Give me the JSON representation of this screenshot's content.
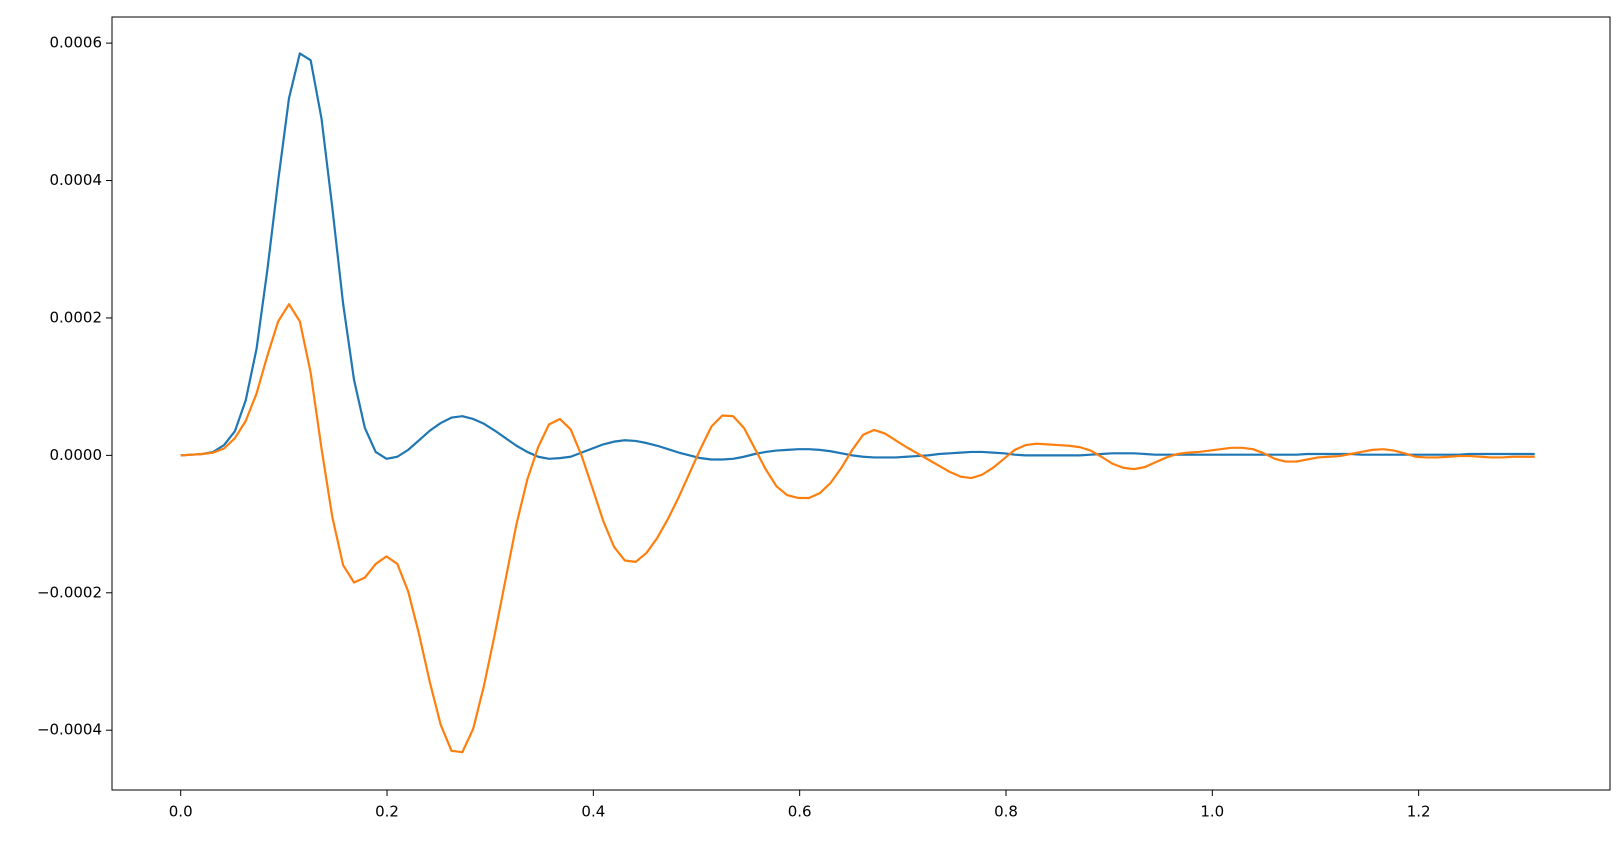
{
  "chart_data": {
    "type": "line",
    "x": [
      0,
      0.0105,
      0.021,
      0.0315,
      0.042,
      0.0525,
      0.063,
      0.0735,
      0.084,
      0.0945,
      0.105,
      0.1155,
      0.126,
      0.1365,
      0.147,
      0.1575,
      0.168,
      0.1785,
      0.189,
      0.1995,
      0.21,
      0.2205,
      0.231,
      0.2415,
      0.252,
      0.2625,
      0.273,
      0.2835,
      0.294,
      0.3045,
      0.315,
      0.3255,
      0.336,
      0.3465,
      0.357,
      0.3675,
      0.378,
      0.3885,
      0.399,
      0.4095,
      0.42,
      0.4305,
      0.441,
      0.4515,
      0.462,
      0.4725,
      0.483,
      0.4935,
      0.504,
      0.5145,
      0.525,
      0.5355,
      0.546,
      0.5565,
      0.567,
      0.5775,
      0.588,
      0.5985,
      0.609,
      0.6195,
      0.63,
      0.6405,
      0.651,
      0.6615,
      0.672,
      0.6825,
      0.693,
      0.7035,
      0.714,
      0.7245,
      0.735,
      0.7455,
      0.756,
      0.7665,
      0.777,
      0.7875,
      0.798,
      0.8085,
      0.819,
      0.8295,
      0.84,
      0.8505,
      0.861,
      0.8715,
      0.882,
      0.8925,
      0.903,
      0.9135,
      0.924,
      0.9345,
      0.945,
      0.9555,
      0.966,
      0.9765,
      0.987,
      0.9975,
      1.008,
      1.0185,
      1.029,
      1.0395,
      1.05,
      1.0605,
      1.071,
      1.0815,
      1.092,
      1.1025,
      1.113,
      1.1235,
      1.134,
      1.1445,
      1.155,
      1.1655,
      1.176,
      1.1865,
      1.197,
      1.2075,
      1.218,
      1.2285,
      1.239,
      1.2495,
      1.26,
      1.2705,
      1.281,
      1.2915,
      1.302,
      1.3125
    ],
    "series": [
      {
        "color": "#1f77b4",
        "values": [
          0,
          1e-06,
          2e-06,
          5e-06,
          1.5e-05,
          3.5e-05,
          8e-05,
          0.000155,
          0.00027,
          0.0004,
          0.00052,
          0.000585,
          0.000575,
          0.00049,
          0.00036,
          0.00022,
          0.00011,
          4e-05,
          5e-06,
          -5e-06,
          -2e-06,
          8e-06,
          2.2e-05,
          3.6e-05,
          4.7e-05,
          5.5e-05,
          5.7e-05,
          5.3e-05,
          4.6e-05,
          3.6e-05,
          2.5e-05,
          1.4e-05,
          5e-06,
          -2e-06,
          -5e-06,
          -4e-06,
          -2e-06,
          4e-06,
          1e-05,
          1.6e-05,
          2e-05,
          2.2e-05,
          2.1e-05,
          1.8e-05,
          1.4e-05,
          9e-06,
          4e-06,
          0,
          -4e-06,
          -6e-06,
          -6e-06,
          -5e-06,
          -2e-06,
          2e-06,
          5e-06,
          7e-06,
          8e-06,
          9e-06,
          9e-06,
          8e-06,
          6e-06,
          3e-06,
          0,
          -2e-06,
          -3e-06,
          -3e-06,
          -3e-06,
          -2e-06,
          -1e-06,
          0,
          2e-06,
          3e-06,
          4e-06,
          5e-06,
          5e-06,
          4e-06,
          3e-06,
          1e-06,
          0,
          0,
          0,
          0,
          0,
          0,
          1e-06,
          2e-06,
          3e-06,
          3e-06,
          3e-06,
          2e-06,
          1e-06,
          1e-06,
          1e-06,
          1e-06,
          1e-06,
          1e-06,
          1e-06,
          1e-06,
          1e-06,
          1e-06,
          1e-06,
          1e-06,
          1e-06,
          1e-06,
          2e-06,
          2e-06,
          2e-06,
          2e-06,
          2e-06,
          1e-06,
          1e-06,
          1e-06,
          1e-06,
          1e-06,
          1e-06,
          1e-06,
          1e-06,
          1e-06,
          1e-06,
          2e-06,
          2e-06,
          2e-06,
          2e-06,
          2e-06,
          2e-06,
          2e-06
        ]
      },
      {
        "color": "#ff7f0e",
        "values": [
          0,
          1e-06,
          2e-06,
          4e-06,
          1e-05,
          2.5e-05,
          5e-05,
          9e-05,
          0.000145,
          0.000195,
          0.00022,
          0.000195,
          0.00012,
          1e-05,
          -9e-05,
          -0.00016,
          -0.000185,
          -0.000178,
          -0.000158,
          -0.000147,
          -0.000158,
          -0.000198,
          -0.00026,
          -0.00033,
          -0.000392,
          -0.00043,
          -0.000432,
          -0.000398,
          -0.000335,
          -0.00026,
          -0.00018,
          -0.0001,
          -3.5e-05,
          1.2e-05,
          4.5e-05,
          5.3e-05,
          3.8e-05,
          0,
          -4.7e-05,
          -9.5e-05,
          -0.000133,
          -0.000153,
          -0.000155,
          -0.000142,
          -0.00012,
          -9.2e-05,
          -6e-05,
          -2.5e-05,
          1e-05,
          4.2e-05,
          5.8e-05,
          5.7e-05,
          4e-05,
          1e-05,
          -2e-05,
          -4.5e-05,
          -5.8e-05,
          -6.2e-05,
          -6.2e-05,
          -5.5e-05,
          -4e-05,
          -1.8e-05,
          8e-06,
          3e-05,
          3.7e-05,
          3.2e-05,
          2.2e-05,
          1.2e-05,
          3e-06,
          -6e-06,
          -1.5e-05,
          -2.4e-05,
          -3.1e-05,
          -3.3e-05,
          -2.8e-05,
          -1.8e-05,
          -5e-06,
          8e-06,
          1.5e-05,
          1.7e-05,
          1.6e-05,
          1.5e-05,
          1.4e-05,
          1.2e-05,
          7e-06,
          -2e-06,
          -1.2e-05,
          -1.8e-05,
          -2e-05,
          -1.7e-05,
          -1e-05,
          -3e-06,
          2e-06,
          4e-06,
          5e-06,
          7e-06,
          9e-06,
          1.1e-05,
          1.1e-05,
          9e-06,
          3e-06,
          -5e-06,
          -9e-06,
          -9e-06,
          -6e-06,
          -3e-06,
          -2e-06,
          -1e-06,
          2e-06,
          5e-06,
          8e-06,
          9e-06,
          7e-06,
          3e-06,
          -2e-06,
          -3e-06,
          -3e-06,
          -2e-06,
          -1e-06,
          -1e-06,
          -2e-06,
          -3e-06,
          -3e-06,
          -2e-06,
          -2e-06,
          -2e-06
        ]
      }
    ],
    "xlim": [
      -0.0666,
      1.3855
    ],
    "ylim": [
      -0.000487,
      0.000638
    ],
    "xticks": [
      {
        "value": 0,
        "label": "0.0"
      },
      0.2,
      0.4,
      0.6,
      0.8,
      {
        "value": 1,
        "label": "1.0"
      },
      1.2
    ],
    "yticks": [
      {
        "value": -0.0004,
        "label": "−0.0004"
      },
      {
        "value": -0.0002,
        "label": "−0.0002"
      },
      {
        "value": 0,
        "label": "0.0000"
      },
      0.0002,
      0.0004,
      0.0006
    ],
    "grid": false
  }
}
